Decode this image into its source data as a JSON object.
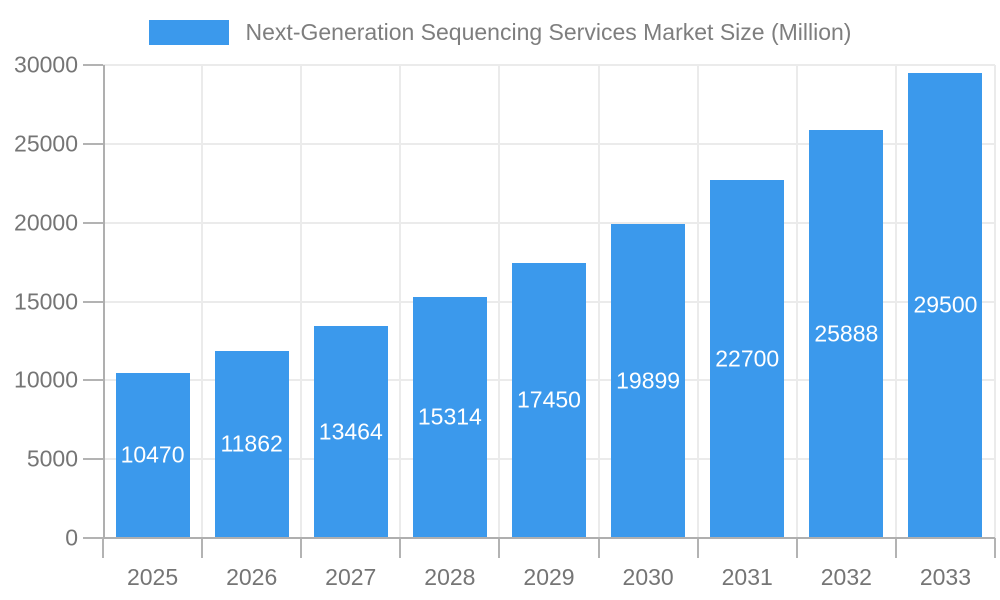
{
  "chart_data": {
    "type": "bar",
    "title": "Next-Generation Sequencing Services Market Size (Million)",
    "categories": [
      "2025",
      "2026",
      "2027",
      "2028",
      "2029",
      "2030",
      "2031",
      "2032",
      "2033"
    ],
    "values": [
      10470,
      11862,
      13464,
      15314,
      17450,
      19899,
      22700,
      25888,
      29500
    ],
    "value_labels": [
      "10470",
      "11862",
      "13464",
      "15314",
      "17450",
      "19899",
      "22700",
      "25888",
      "29500"
    ],
    "xlabel": "",
    "ylabel": "",
    "ylim": [
      0,
      30000
    ],
    "yticks": [
      0,
      5000,
      10000,
      15000,
      20000,
      25000,
      30000
    ],
    "ytick_labels": [
      "0",
      "5000",
      "10000",
      "15000",
      "20000",
      "25000",
      "30000"
    ],
    "grid": true,
    "legend_position": "top-center",
    "colors": {
      "bar": "#3B99EC",
      "value_label": "#FFFFFF",
      "axis_label": "#757575",
      "legend_text": "#7E7E7E",
      "gridline": "#EBEBEB",
      "axis_line": "#AFAFAF",
      "tick": "#B3B3B3"
    }
  }
}
